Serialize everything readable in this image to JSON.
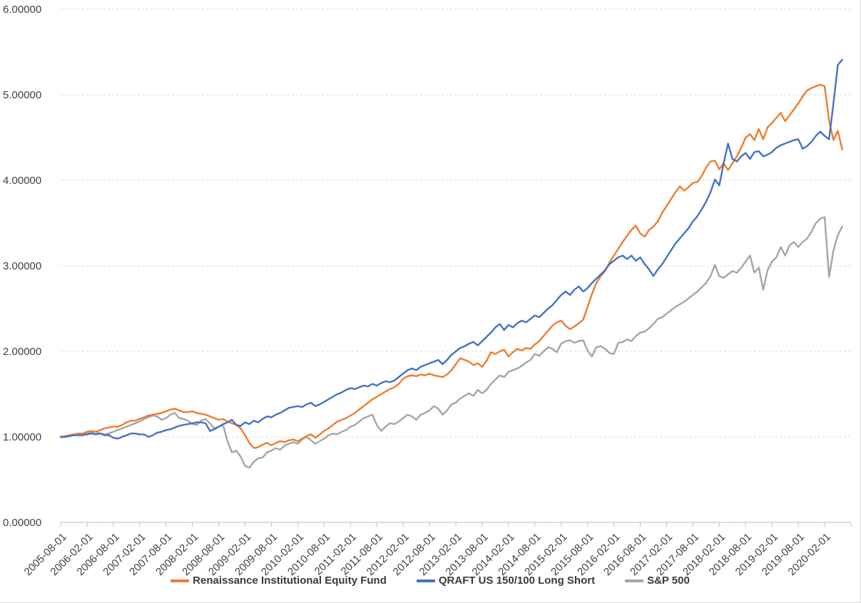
{
  "chart_data": {
    "type": "line",
    "title": "",
    "x_start": "2005-08-01",
    "frequency": "monthly",
    "grid": "horizontal-dashed",
    "legend_position": "bottom",
    "ylim": [
      0,
      6
    ],
    "y_tick_labels": [
      "0.00000",
      "1.00000",
      "2.00000",
      "3.00000",
      "4.00000",
      "5.00000",
      "6.00000"
    ],
    "x_tick_labels": [
      "2005-08-01",
      "2006-02-01",
      "2006-08-01",
      "2007-02-01",
      "2007-08-01",
      "2008-02-01",
      "2008-08-01",
      "2009-02-01",
      "2009-08-01",
      "2010-02-01",
      "2010-08-01",
      "2011-02-01",
      "2011-08-01",
      "2012-02-01",
      "2012-08-01",
      "2013-02-01",
      "2013-08-01",
      "2014-02-01",
      "2014-08-01",
      "2015-02-01",
      "2015-08-01",
      "2016-02-01",
      "2016-08-01",
      "2017-02-01",
      "2017-08-01",
      "2018-02-01",
      "2018-08-01",
      "2019-02-01",
      "2019-08-01",
      "2020-02-01"
    ],
    "axis_color": "#bfbfbf",
    "gridline_color": "#d9d9d9",
    "series": [
      {
        "name": "Renaissance Institutional Equity Fund",
        "color": "#ED7D31",
        "values": [
          1.0,
          1.01,
          1.02,
          1.03,
          1.04,
          1.04,
          1.06,
          1.07,
          1.06,
          1.08,
          1.1,
          1.11,
          1.12,
          1.12,
          1.14,
          1.17,
          1.19,
          1.19,
          1.21,
          1.23,
          1.25,
          1.26,
          1.27,
          1.28,
          1.3,
          1.32,
          1.33,
          1.31,
          1.29,
          1.29,
          1.3,
          1.28,
          1.27,
          1.26,
          1.24,
          1.22,
          1.2,
          1.21,
          1.18,
          1.16,
          1.14,
          1.1,
          1.02,
          0.93,
          0.87,
          0.88,
          0.91,
          0.93,
          0.9,
          0.93,
          0.95,
          0.94,
          0.96,
          0.97,
          0.95,
          0.98,
          1.01,
          1.03,
          0.99,
          1.03,
          1.07,
          1.1,
          1.14,
          1.18,
          1.2,
          1.22,
          1.25,
          1.28,
          1.32,
          1.36,
          1.4,
          1.44,
          1.47,
          1.5,
          1.53,
          1.56,
          1.58,
          1.62,
          1.68,
          1.71,
          1.72,
          1.71,
          1.73,
          1.72,
          1.74,
          1.72,
          1.71,
          1.7,
          1.73,
          1.78,
          1.85,
          1.92,
          1.9,
          1.88,
          1.84,
          1.86,
          1.82,
          1.89,
          1.99,
          1.97,
          2.0,
          2.02,
          1.94,
          1.99,
          2.03,
          2.01,
          2.04,
          2.03,
          2.08,
          2.12,
          2.18,
          2.24,
          2.3,
          2.34,
          2.36,
          2.3,
          2.26,
          2.29,
          2.33,
          2.37,
          2.52,
          2.67,
          2.8,
          2.88,
          2.94,
          3.04,
          3.12,
          3.2,
          3.28,
          3.35,
          3.42,
          3.47,
          3.38,
          3.34,
          3.42,
          3.46,
          3.52,
          3.62,
          3.7,
          3.78,
          3.86,
          3.93,
          3.88,
          3.92,
          3.97,
          3.98,
          4.05,
          4.15,
          4.22,
          4.23,
          4.13,
          4.2,
          4.12,
          4.2,
          4.28,
          4.38,
          4.5,
          4.54,
          4.47,
          4.6,
          4.48,
          4.62,
          4.67,
          4.73,
          4.79,
          4.69,
          4.76,
          4.83,
          4.9,
          4.98,
          5.05,
          5.08,
          5.1,
          5.12,
          5.1,
          4.7,
          4.47,
          4.58,
          4.36
        ]
      },
      {
        "name": "QRAFT US 150/100 Long Short",
        "color": "#4472C4",
        "values": [
          1.0,
          1.0,
          1.01,
          1.02,
          1.02,
          1.02,
          1.03,
          1.04,
          1.03,
          1.04,
          1.02,
          1.02,
          0.99,
          0.98,
          1.0,
          1.02,
          1.04,
          1.04,
          1.03,
          1.03,
          1.0,
          1.02,
          1.05,
          1.06,
          1.08,
          1.09,
          1.11,
          1.13,
          1.14,
          1.15,
          1.16,
          1.17,
          1.17,
          1.16,
          1.07,
          1.09,
          1.12,
          1.15,
          1.17,
          1.2,
          1.14,
          1.13,
          1.17,
          1.15,
          1.19,
          1.17,
          1.21,
          1.24,
          1.23,
          1.26,
          1.28,
          1.31,
          1.34,
          1.35,
          1.36,
          1.35,
          1.38,
          1.4,
          1.36,
          1.38,
          1.41,
          1.44,
          1.47,
          1.5,
          1.52,
          1.55,
          1.57,
          1.56,
          1.58,
          1.6,
          1.59,
          1.62,
          1.6,
          1.63,
          1.65,
          1.64,
          1.66,
          1.7,
          1.74,
          1.78,
          1.8,
          1.78,
          1.82,
          1.84,
          1.86,
          1.88,
          1.9,
          1.85,
          1.9,
          1.96,
          2.0,
          2.04,
          2.06,
          2.09,
          2.11,
          2.07,
          2.12,
          2.17,
          2.22,
          2.28,
          2.32,
          2.25,
          2.31,
          2.28,
          2.33,
          2.36,
          2.34,
          2.38,
          2.42,
          2.4,
          2.45,
          2.5,
          2.54,
          2.6,
          2.66,
          2.7,
          2.66,
          2.72,
          2.76,
          2.7,
          2.74,
          2.8,
          2.85,
          2.9,
          2.95,
          3.02,
          3.06,
          3.1,
          3.12,
          3.08,
          3.12,
          3.06,
          3.1,
          3.02,
          2.96,
          2.88,
          2.96,
          3.02,
          3.1,
          3.18,
          3.26,
          3.32,
          3.38,
          3.44,
          3.52,
          3.58,
          3.66,
          3.75,
          3.86,
          4.01,
          3.94,
          4.2,
          4.43,
          4.25,
          4.22,
          4.28,
          4.32,
          4.25,
          4.33,
          4.34,
          4.28,
          4.3,
          4.33,
          4.38,
          4.41,
          4.43,
          4.45,
          4.47,
          4.48,
          4.37,
          4.4,
          4.45,
          4.52,
          4.57,
          4.52,
          4.48,
          4.9,
          5.35,
          5.41
        ]
      },
      {
        "name": "S&P 500",
        "color": "#A5A5A5",
        "values": [
          1.0,
          1.0,
          1.01,
          1.03,
          1.03,
          1.04,
          1.04,
          1.05,
          1.06,
          1.04,
          1.03,
          1.04,
          1.06,
          1.08,
          1.1,
          1.12,
          1.14,
          1.16,
          1.18,
          1.21,
          1.23,
          1.25,
          1.24,
          1.2,
          1.22,
          1.26,
          1.28,
          1.22,
          1.21,
          1.19,
          1.15,
          1.14,
          1.19,
          1.21,
          1.16,
          1.1,
          1.12,
          1.14,
          0.95,
          0.82,
          0.84,
          0.77,
          0.66,
          0.64,
          0.71,
          0.75,
          0.76,
          0.82,
          0.84,
          0.87,
          0.85,
          0.9,
          0.92,
          0.94,
          0.92,
          0.97,
          1.0,
          0.96,
          0.92,
          0.95,
          0.98,
          1.02,
          1.04,
          1.03,
          1.06,
          1.08,
          1.12,
          1.14,
          1.18,
          1.22,
          1.24,
          1.26,
          1.14,
          1.07,
          1.12,
          1.16,
          1.15,
          1.18,
          1.22,
          1.26,
          1.24,
          1.2,
          1.26,
          1.28,
          1.31,
          1.36,
          1.33,
          1.26,
          1.31,
          1.38,
          1.4,
          1.45,
          1.48,
          1.51,
          1.48,
          1.55,
          1.51,
          1.55,
          1.62,
          1.67,
          1.72,
          1.7,
          1.76,
          1.78,
          1.8,
          1.83,
          1.87,
          1.9,
          1.97,
          1.95,
          2.0,
          2.05,
          2.03,
          1.99,
          2.09,
          2.12,
          2.13,
          2.1,
          2.12,
          2.13,
          2.01,
          1.94,
          2.05,
          2.06,
          2.03,
          1.98,
          1.97,
          2.1,
          2.11,
          2.14,
          2.12,
          2.18,
          2.22,
          2.23,
          2.27,
          2.32,
          2.38,
          2.4,
          2.44,
          2.48,
          2.52,
          2.55,
          2.58,
          2.62,
          2.66,
          2.7,
          2.75,
          2.8,
          2.88,
          3.01,
          2.88,
          2.86,
          2.9,
          2.94,
          2.92,
          2.98,
          3.05,
          3.12,
          2.92,
          2.98,
          2.72,
          2.95,
          3.05,
          3.1,
          3.22,
          3.12,
          3.24,
          3.28,
          3.22,
          3.28,
          3.32,
          3.4,
          3.5,
          3.55,
          3.57,
          2.87,
          3.18,
          3.36,
          3.46
        ]
      }
    ]
  }
}
